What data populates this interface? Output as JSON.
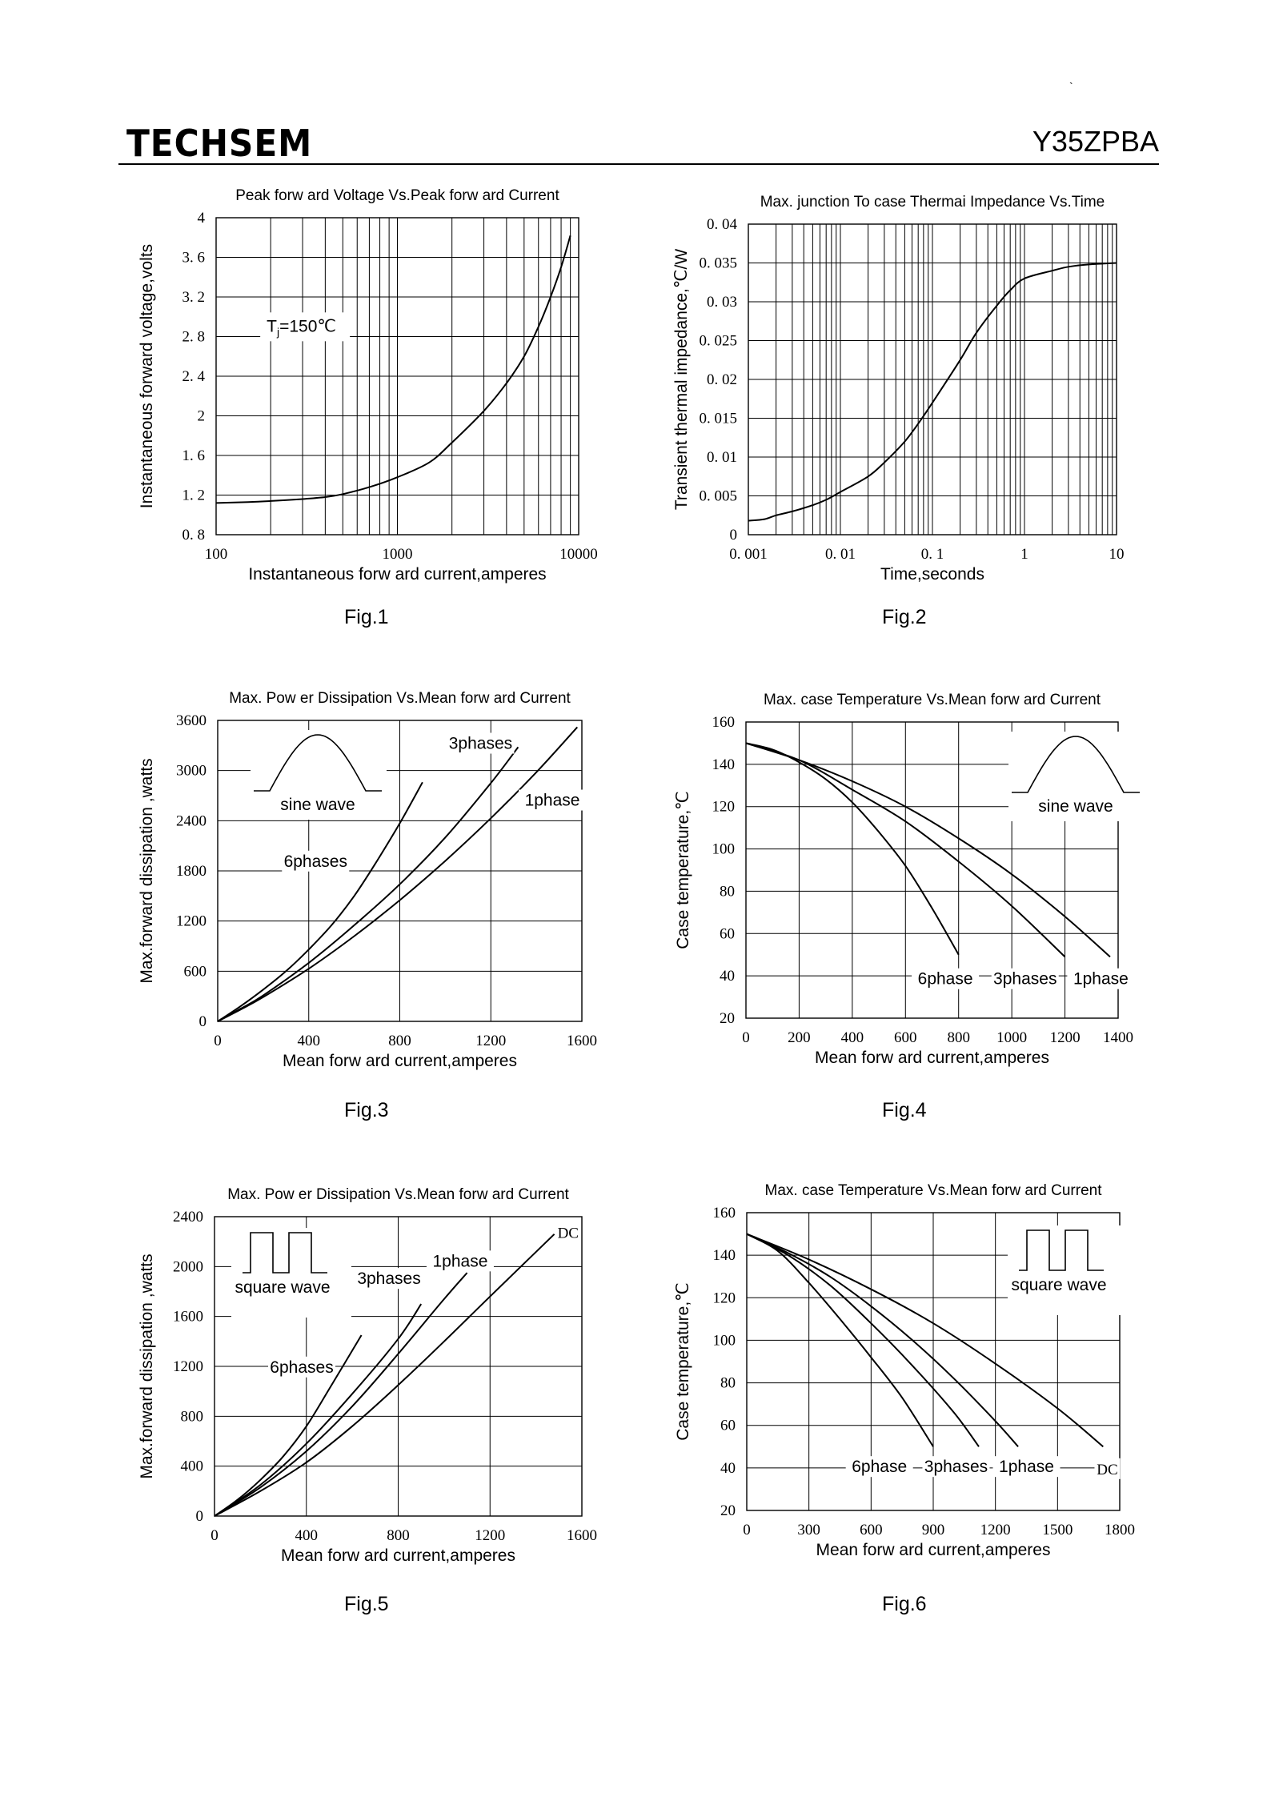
{
  "header": {
    "logo": "TECHSEM",
    "part_number": "Y35ZPBA",
    "corner_mark": "`"
  },
  "figures": [
    "Fig.1",
    "Fig.2",
    "Fig.3",
    "Fig.4",
    "Fig.5",
    "Fig.6"
  ],
  "chart_data": [
    {
      "id": "fig1",
      "type": "line",
      "title": "Peak forw ard Voltage Vs.Peak forw ard Current",
      "xlabel": "Instantaneous forw ard current,amperes",
      "ylabel": "Instantaneous forward voltage,volts",
      "xscale": "log",
      "xlim": [
        100,
        10000
      ],
      "ylim": [
        0.8,
        4
      ],
      "xticks": [
        100,
        1000,
        10000
      ],
      "xtick_labels": [
        "100",
        "1000",
        "10000"
      ],
      "yticks": [
        0.8,
        1.2,
        1.6,
        2,
        2.4,
        2.8,
        3.2,
        3.6,
        4
      ],
      "ytick_labels": [
        "0. 8",
        "1. 2",
        "1. 6",
        "2",
        "2. 4",
        "2. 8",
        "3. 2",
        "3. 6",
        "4"
      ],
      "annotations": [
        {
          "text": "Tj=150℃",
          "x": 190,
          "y": 2.85
        }
      ],
      "series": [
        {
          "name": "",
          "x": [
            100,
            150,
            200,
            300,
            400,
            500,
            700,
            1000,
            1500,
            2000,
            3000,
            4000,
            5000,
            6000,
            7000,
            8000,
            9000
          ],
          "y": [
            1.12,
            1.13,
            1.14,
            1.16,
            1.18,
            1.21,
            1.28,
            1.38,
            1.53,
            1.73,
            2.05,
            2.33,
            2.6,
            2.9,
            3.2,
            3.5,
            3.82
          ]
        }
      ]
    },
    {
      "id": "fig2",
      "type": "line",
      "title": "Max. junction To case Thermai Impedance Vs.Time",
      "xlabel": "Time,seconds",
      "ylabel": "Transient thermal impedance,℃/W",
      "xscale": "log",
      "xlim": [
        0.001,
        10
      ],
      "ylim": [
        0,
        0.04
      ],
      "xticks": [
        0.001,
        0.01,
        0.1,
        1,
        10
      ],
      "xtick_labels": [
        "0. 001",
        "0. 01",
        "0. 1",
        "1",
        "10"
      ],
      "yticks": [
        0,
        0.005,
        0.01,
        0.015,
        0.02,
        0.025,
        0.03,
        0.035,
        0.04
      ],
      "ytick_labels": [
        "0",
        "0. 005",
        "0. 01",
        "0. 015",
        "0. 02",
        "0. 025",
        "0. 03",
        "0. 035",
        "0. 04"
      ],
      "series": [
        {
          "name": "",
          "x": [
            0.001,
            0.0015,
            0.002,
            0.003,
            0.005,
            0.007,
            0.01,
            0.02,
            0.03,
            0.05,
            0.07,
            0.1,
            0.2,
            0.3,
            0.5,
            0.7,
            1,
            2,
            3,
            5,
            10
          ],
          "y": [
            0.0018,
            0.002,
            0.0025,
            0.003,
            0.0038,
            0.0045,
            0.0055,
            0.0075,
            0.0093,
            0.012,
            0.0143,
            0.017,
            0.0225,
            0.026,
            0.0295,
            0.0315,
            0.033,
            0.034,
            0.0345,
            0.0348,
            0.035
          ]
        }
      ]
    },
    {
      "id": "fig3",
      "type": "line",
      "title": "Max. Pow er Dissipation Vs.Mean forw ard Current",
      "xlabel": "Mean forw ard current,amperes",
      "ylabel": "Max.forward dissipation ,watts",
      "xlim": [
        0,
        1600
      ],
      "ylim": [
        0,
        3600
      ],
      "xticks": [
        0,
        400,
        800,
        1200,
        1600
      ],
      "xtick_labels": [
        "0",
        "400",
        "800",
        "1200",
        "1600"
      ],
      "yticks": [
        0,
        600,
        1200,
        1800,
        2400,
        3000,
        3600
      ],
      "ytick_labels": [
        "0",
        "600",
        "1200",
        "1800",
        "2400",
        "3000",
        "3600"
      ],
      "inset": "sine wave",
      "series": [
        {
          "name": "6phases",
          "x": [
            0,
            100,
            200,
            300,
            400,
            500,
            600,
            700,
            800,
            900
          ],
          "y": [
            0,
            180,
            380,
            600,
            860,
            1150,
            1500,
            1920,
            2370,
            2860
          ]
        },
        {
          "name": "3phases",
          "x": [
            0,
            100,
            200,
            400,
            600,
            800,
            1000,
            1200,
            1320
          ],
          "y": [
            0,
            150,
            310,
            700,
            1150,
            1640,
            2200,
            2850,
            3280
          ]
        },
        {
          "name": "1phase",
          "x": [
            0,
            100,
            200,
            400,
            600,
            800,
            1000,
            1200,
            1400,
            1580
          ],
          "y": [
            0,
            140,
            290,
            630,
            1020,
            1450,
            1920,
            2430,
            2980,
            3520
          ]
        }
      ]
    },
    {
      "id": "fig4",
      "type": "line",
      "title": "Max. case  Temperature Vs.Mean forw ard Current",
      "xlabel": "Mean forw ard current,amperes",
      "ylabel": "Case  temperature,℃",
      "xlim": [
        0,
        1400
      ],
      "ylim": [
        20,
        160
      ],
      "xticks": [
        0,
        200,
        400,
        600,
        800,
        1000,
        1200,
        1400
      ],
      "xtick_labels": [
        "0",
        "200",
        "400",
        "600",
        "800",
        "1000",
        "1200",
        "1400"
      ],
      "yticks": [
        20,
        40,
        60,
        80,
        100,
        120,
        140,
        160
      ],
      "ytick_labels": [
        "20",
        "40",
        "60",
        "80",
        "100",
        "120",
        "140",
        "160"
      ],
      "inset": "sine wave",
      "series": [
        {
          "name": "6phase",
          "x": [
            0,
            100,
            200,
            300,
            400,
            500,
            600,
            700,
            800
          ],
          "y": [
            150,
            147,
            141,
            133,
            122,
            108,
            92,
            72,
            50
          ]
        },
        {
          "name": "3phases",
          "x": [
            0,
            200,
            400,
            600,
            800,
            1000,
            1200
          ],
          "y": [
            150,
            142,
            128,
            113,
            94,
            73,
            49
          ]
        },
        {
          "name": "1phase",
          "x": [
            0,
            200,
            400,
            600,
            800,
            1000,
            1200,
            1370
          ],
          "y": [
            150,
            142,
            132,
            120,
            105,
            88,
            68,
            49
          ]
        }
      ]
    },
    {
      "id": "fig5",
      "type": "line",
      "title": "Max. Pow er Dissipation Vs.Mean forw ard Current",
      "xlabel": "Mean forw ard current,amperes",
      "ylabel": "Max.forward dissipation ,watts",
      "xlim": [
        0,
        1600
      ],
      "ylim": [
        0,
        2400
      ],
      "xticks": [
        0,
        400,
        800,
        1200,
        1600
      ],
      "xtick_labels": [
        "0",
        "400",
        "800",
        "1200",
        "1600"
      ],
      "yticks": [
        0,
        400,
        800,
        1200,
        1600,
        2000,
        2400
      ],
      "ytick_labels": [
        "0",
        "400",
        "800",
        "1200",
        "1600",
        "2000",
        "2400"
      ],
      "inset": "square wave",
      "series": [
        {
          "name": "6phases",
          "x": [
            0,
            100,
            200,
            300,
            400,
            500,
            640
          ],
          "y": [
            0,
            130,
            290,
            480,
            720,
            1020,
            1450
          ]
        },
        {
          "name": "3phases",
          "x": [
            0,
            200,
            400,
            600,
            800,
            900
          ],
          "y": [
            0,
            250,
            580,
            980,
            1420,
            1700
          ]
        },
        {
          "name": "1phase",
          "x": [
            0,
            200,
            400,
            600,
            800,
            1000,
            1100
          ],
          "y": [
            0,
            230,
            520,
            880,
            1300,
            1740,
            1950
          ]
        },
        {
          "name": "DC",
          "x": [
            0,
            200,
            400,
            600,
            800,
            1000,
            1200,
            1480
          ],
          "y": [
            0,
            200,
            430,
            720,
            1050,
            1400,
            1760,
            2260
          ]
        }
      ]
    },
    {
      "id": "fig6",
      "type": "line",
      "title": "Max. case Temperature Vs.Mean forw ard Current",
      "xlabel": "Mean forw ard current,amperes",
      "ylabel": "Case  temperature,℃",
      "xlim": [
        0,
        1800
      ],
      "ylim": [
        20,
        160
      ],
      "xticks": [
        0,
        300,
        600,
        900,
        1200,
        1500,
        1800
      ],
      "xtick_labels": [
        "0",
        "300",
        "600",
        "900",
        "1200",
        "1500",
        "1800"
      ],
      "yticks": [
        20,
        40,
        60,
        80,
        100,
        120,
        140,
        160
      ],
      "ytick_labels": [
        "20",
        "40",
        "60",
        "80",
        "100",
        "120",
        "140",
        "160"
      ],
      "inset": "square wave",
      "series": [
        {
          "name": "6phase",
          "x": [
            0,
            150,
            300,
            450,
            600,
            750,
            900
          ],
          "y": [
            150,
            142,
            127,
            110,
            92,
            73,
            50
          ]
        },
        {
          "name": "3phases",
          "x": [
            0,
            200,
            400,
            600,
            800,
            1000,
            1120
          ],
          "y": [
            150,
            140,
            126,
            108,
            88,
            66,
            50
          ]
        },
        {
          "name": "1phase",
          "x": [
            0,
            200,
            400,
            600,
            800,
            1000,
            1200,
            1310
          ],
          "y": [
            150,
            141,
            130,
            116,
            100,
            82,
            62,
            50
          ]
        },
        {
          "name": "DC",
          "x": [
            0,
            300,
            600,
            900,
            1200,
            1500,
            1720
          ],
          "y": [
            150,
            138,
            124,
            108,
            89,
            68,
            50
          ]
        }
      ]
    }
  ]
}
